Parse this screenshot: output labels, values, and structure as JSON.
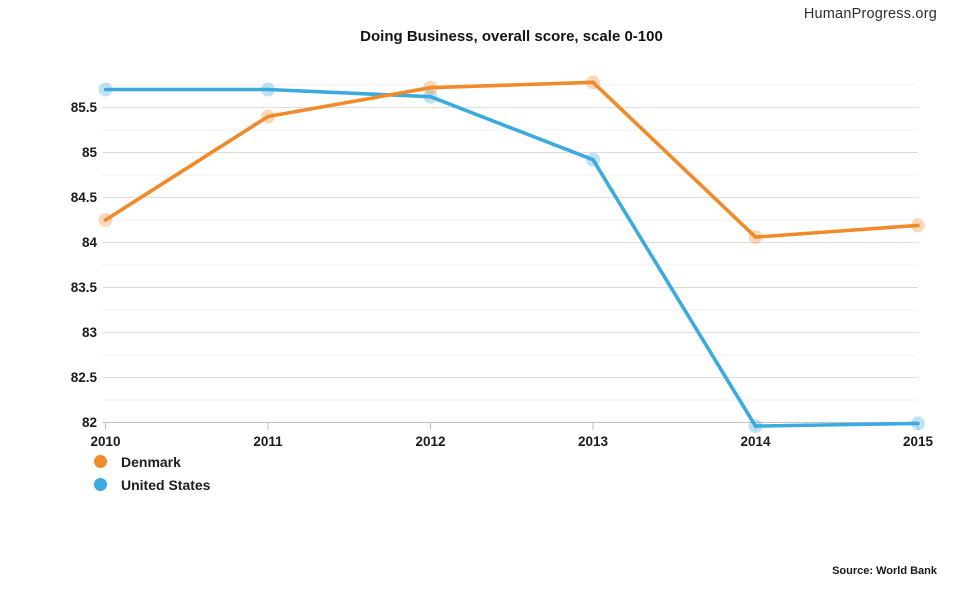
{
  "brand": "HumanProgress.org",
  "source": "Source: World Bank",
  "chart_data": {
    "type": "line",
    "title": "Doing Business, overall score, scale 0-100",
    "xlabel": "",
    "ylabel": "",
    "categories": [
      "2010",
      "2011",
      "2012",
      "2013",
      "2014",
      "2015"
    ],
    "series": [
      {
        "name": "Denmark",
        "color": "#F08A2B",
        "values": [
          84.25,
          85.4,
          85.72,
          85.78,
          84.06,
          84.19
        ]
      },
      {
        "name": "United States",
        "color": "#3BAADE",
        "values": [
          85.7,
          85.7,
          85.62,
          84.92,
          81.96,
          81.99
        ]
      }
    ],
    "yticks": [
      82,
      82.5,
      83,
      83.5,
      84,
      84.5,
      85,
      85.5
    ],
    "ylim": [
      81.9,
      85.85
    ],
    "minor_grid_step": 0.25,
    "grid": "horizontal",
    "legend_position": "bottom-left"
  }
}
